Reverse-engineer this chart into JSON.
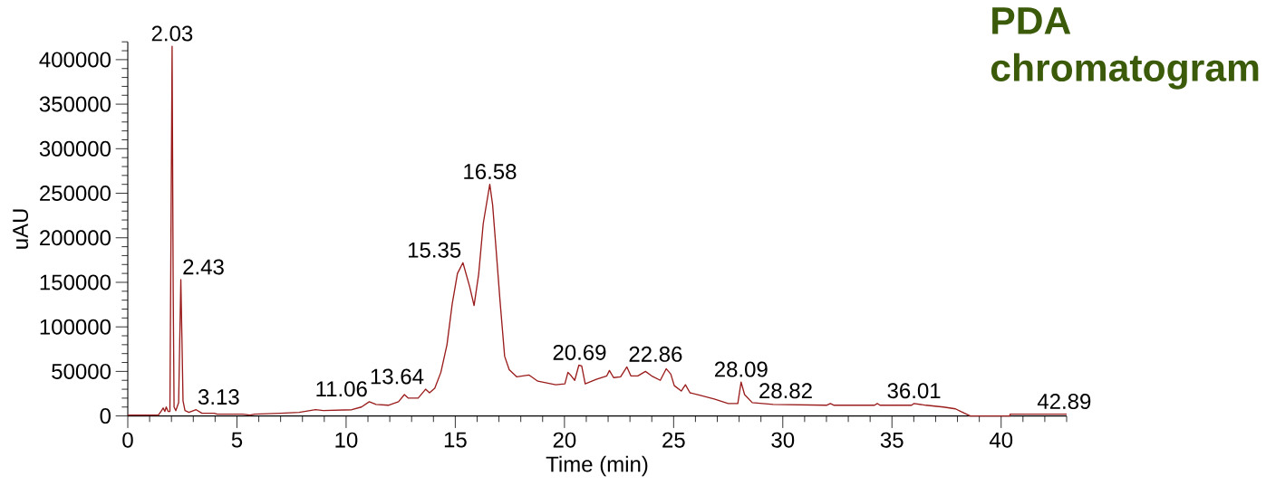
{
  "chart_data": {
    "type": "line",
    "title": "PDA chromatogram",
    "xlabel": "Time (min)",
    "ylabel": "uAU",
    "color": "#9a1c1c",
    "line_style": "solid",
    "x": [
      0,
      1.4,
      1.55,
      1.62,
      1.7,
      1.76,
      1.85,
      1.93,
      2.03,
      2.08,
      2.12,
      2.2,
      2.33,
      2.43,
      2.49,
      2.53,
      2.62,
      2.8,
      3.13,
      3.4,
      3.96,
      4.1,
      5.26,
      5.6,
      5.8,
      7.0,
      7.85,
      8.6,
      8.96,
      10.26,
      10.7,
      11.06,
      11.37,
      11.93,
      12.4,
      12.67,
      12.85,
      13.3,
      13.64,
      13.82,
      14.06,
      14.34,
      14.62,
      14.86,
      15.1,
      15.35,
      15.66,
      15.86,
      16.07,
      16.28,
      16.58,
      16.71,
      16.85,
      17.05,
      17.26,
      17.47,
      17.81,
      18.37,
      18.78,
      19.6,
      20.02,
      20.16,
      20.31,
      20.47,
      20.66,
      20.79,
      20.95,
      21.46,
      21.94,
      22.06,
      22.25,
      22.57,
      22.86,
      23.04,
      23.36,
      23.71,
      23.99,
      24.39,
      24.66,
      24.87,
      25.03,
      25.35,
      25.54,
      25.75,
      26.23,
      26.86,
      27.5,
      27.94,
      28.09,
      28.25,
      28.6,
      29.56,
      32.0,
      32.18,
      32.35,
      34.2,
      34.33,
      34.45,
      35.9,
      36.01,
      36.56,
      37.36,
      37.91,
      38.15,
      38.59,
      40.4,
      40.41,
      43
    ],
    "values": [
      1000,
      1000,
      6000,
      9000,
      5000,
      10000,
      5000,
      5000,
      415000,
      142000,
      10000,
      6000,
      15000,
      153000,
      74000,
      17000,
      6000,
      4000,
      7000,
      3000,
      3000,
      2000,
      2000,
      1000,
      2000,
      3000,
      4000,
      7000,
      6000,
      7000,
      10000,
      16000,
      13000,
      12000,
      16000,
      24000,
      20000,
      20000,
      30000,
      26000,
      31000,
      49000,
      80000,
      126000,
      160000,
      172000,
      145000,
      124000,
      159000,
      216000,
      260000,
      237000,
      193000,
      129000,
      67000,
      52000,
      44000,
      46000,
      39000,
      35000,
      36000,
      49000,
      45000,
      40000,
      57000,
      56000,
      36000,
      41000,
      45000,
      51000,
      43000,
      44000,
      55000,
      45000,
      45000,
      50000,
      45000,
      40000,
      53000,
      47000,
      34000,
      28000,
      35000,
      26000,
      23000,
      19000,
      14000,
      14000,
      38000,
      24000,
      15000,
      13000,
      12000,
      14000,
      12000,
      12000,
      14000,
      12000,
      12000,
      14000,
      12000,
      10000,
      8000,
      5000,
      0,
      0,
      2000,
      2000
    ],
    "xlim": [
      0,
      43
    ],
    "ylim": [
      0,
      420000
    ],
    "xticks": [
      0,
      5,
      10,
      15,
      20,
      25,
      30,
      35,
      40
    ],
    "yticks": [
      0,
      50000,
      100000,
      150000,
      200000,
      250000,
      300000,
      350000,
      400000
    ],
    "annotations": [
      {
        "text": "2.03",
        "x": 2.03,
        "y": 415000
      },
      {
        "text": "2.43",
        "x": 2.43,
        "y": 153000
      },
      {
        "text": "3.13",
        "x": 3.13,
        "y": 7000
      },
      {
        "text": "11.06",
        "x": 11.06,
        "y": 16000
      },
      {
        "text": "13.64",
        "x": 13.64,
        "y": 30000
      },
      {
        "text": "15.35",
        "x": 15.35,
        "y": 172000
      },
      {
        "text": "16.58",
        "x": 16.58,
        "y": 260000
      },
      {
        "text": "20.69",
        "x": 20.69,
        "y": 57000
      },
      {
        "text": "22.86",
        "x": 22.86,
        "y": 55000
      },
      {
        "text": "28.09",
        "x": 28.09,
        "y": 38000
      },
      {
        "text": "28.82",
        "x": 28.82,
        "y": 14000
      },
      {
        "text": "36.01",
        "x": 36.01,
        "y": 14000
      },
      {
        "text": "42.89",
        "x": 42.89,
        "y": 2000
      }
    ]
  }
}
